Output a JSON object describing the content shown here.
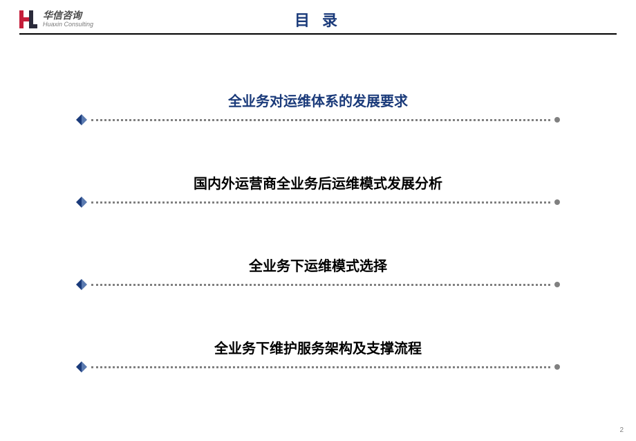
{
  "header": {
    "brand_cn": "华信咨询",
    "brand_en": "Huaxin Consulting",
    "logo_colors": {
      "red": "#c41e3a",
      "dark": "#2a2a3a"
    },
    "title": "目 录",
    "title_color": "#1a3a7a",
    "rule_color": "#000000"
  },
  "toc": {
    "items": [
      {
        "label": "全业务对运维体系的发展要求",
        "highlighted": true
      },
      {
        "label": "国内外运营商全业务后运维模式发展分析",
        "highlighted": false
      },
      {
        "label": "全业务下运维模式选择",
        "highlighted": false
      },
      {
        "label": "全业务下维护服务架构及支撑流程",
        "highlighted": false
      }
    ],
    "highlight_color": "#1a3a7a",
    "normal_color": "#000000",
    "diamond_dark": "#1a3a7a",
    "diamond_light": "#5a7ab0",
    "dot_color": "#808080",
    "label_fontsize": 20
  },
  "page_number": "2"
}
